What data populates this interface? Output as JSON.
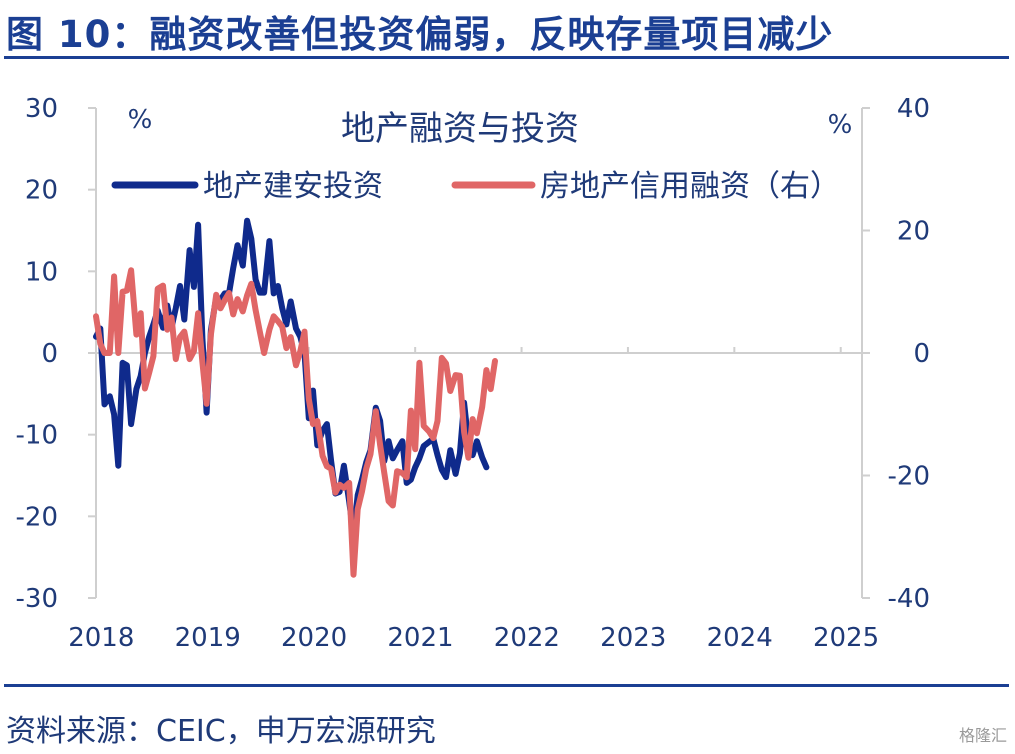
{
  "title": "图 10：融资改善但投资偏弱，反映存量项目减少",
  "source": "资料来源：CEIC，申万宏源研究",
  "watermark": "格隆汇",
  "chart_data": {
    "type": "line",
    "title": "地产融资与投资",
    "left_unit": "%",
    "right_unit": "%",
    "left_ylim": [
      -30,
      30
    ],
    "left_ticks": [
      "30",
      "20",
      "10",
      "0",
      "-10",
      "-20",
      "-30"
    ],
    "right_ylim": [
      -40,
      40
    ],
    "right_ticks": [
      "40",
      "20",
      "0",
      "-20",
      "-40"
    ],
    "x_ticks": [
      "2018",
      "2019",
      "2020",
      "2021",
      "2022",
      "2023",
      "2024",
      "2025"
    ],
    "grid": false,
    "legend_position": "top",
    "colors": {
      "investment": "#0f2a8c",
      "financing": "#e06666",
      "axis": "#cfcfcf",
      "text": "#1f3a78",
      "title": "#1b3f93"
    },
    "series": [
      {
        "name": "地产建安投资",
        "axis": "left",
        "color": "#0f2a8c",
        "points": [
          [
            2018.0,
            2
          ],
          [
            2018.04,
            3
          ],
          [
            2018.08,
            -6.3
          ],
          [
            2018.13,
            -5.3
          ],
          [
            2018.17,
            -7.5
          ],
          [
            2018.21,
            -13.8
          ],
          [
            2018.25,
            -1.2
          ],
          [
            2018.29,
            -1.5
          ],
          [
            2018.33,
            -8.7
          ],
          [
            2018.38,
            -4.4
          ],
          [
            2018.42,
            -2.8
          ],
          [
            2018.46,
            0
          ],
          [
            2018.5,
            2
          ],
          [
            2018.54,
            3.5
          ],
          [
            2018.58,
            5.2
          ],
          [
            2018.63,
            3.1
          ],
          [
            2018.67,
            5.8
          ],
          [
            2018.71,
            3.1
          ],
          [
            2018.75,
            5.5
          ],
          [
            2018.79,
            8.2
          ],
          [
            2018.83,
            4.1
          ],
          [
            2018.88,
            12.6
          ],
          [
            2018.92,
            8.1
          ],
          [
            2018.96,
            15.7
          ],
          [
            2019.0,
            1.8
          ],
          [
            2019.04,
            -7.3
          ],
          [
            2019.08,
            2.8
          ],
          [
            2019.13,
            6.8
          ],
          [
            2019.17,
            6.5
          ],
          [
            2019.21,
            7.3
          ],
          [
            2019.25,
            7.3
          ],
          [
            2019.29,
            10.4
          ],
          [
            2019.33,
            13.2
          ],
          [
            2019.38,
            10.7
          ],
          [
            2019.42,
            16.2
          ],
          [
            2019.46,
            14
          ],
          [
            2019.5,
            9
          ],
          [
            2019.54,
            7.4
          ],
          [
            2019.58,
            7.4
          ],
          [
            2019.63,
            13.7
          ],
          [
            2019.67,
            7.3
          ],
          [
            2019.71,
            8.2
          ],
          [
            2019.75,
            5.5
          ],
          [
            2019.79,
            3.5
          ],
          [
            2019.83,
            6.3
          ],
          [
            2019.88,
            3
          ],
          [
            2019.92,
            2
          ],
          [
            2019.96,
            0
          ],
          [
            2020.0,
            -8
          ],
          [
            2020.04,
            -4.6
          ],
          [
            2020.08,
            -11.3
          ],
          [
            2020.13,
            -9.5
          ],
          [
            2020.17,
            -8.7
          ],
          [
            2020.21,
            -13.2
          ],
          [
            2020.25,
            -17.2
          ],
          [
            2020.29,
            -17
          ],
          [
            2020.33,
            -13.8
          ],
          [
            2020.38,
            -18.2
          ],
          [
            2020.42,
            -22.2
          ],
          [
            2020.46,
            -17.4
          ],
          [
            2020.5,
            -15.5
          ],
          [
            2020.54,
            -13.4
          ],
          [
            2020.58,
            -11.9
          ],
          [
            2020.63,
            -6.7
          ],
          [
            2020.67,
            -8.3
          ],
          [
            2020.71,
            -13.2
          ],
          [
            2020.75,
            -10.8
          ],
          [
            2020.79,
            -12.9
          ],
          [
            2020.83,
            -11.9
          ],
          [
            2020.88,
            -10.8
          ],
          [
            2020.92,
            -15.9
          ],
          [
            2020.96,
            -15.5
          ],
          [
            2021.0,
            -14
          ],
          [
            2021.04,
            -12.9
          ],
          [
            2021.08,
            -11.4
          ],
          [
            2021.13,
            -10.9
          ],
          [
            2021.17,
            -10.5
          ],
          [
            2021.21,
            -12.5
          ],
          [
            2021.25,
            -14.3
          ],
          [
            2021.29,
            -15.2
          ],
          [
            2021.33,
            -11.9
          ],
          [
            2021.38,
            -14.8
          ],
          [
            2021.42,
            -12.3
          ],
          [
            2021.46,
            -6.1
          ],
          [
            2021.5,
            -11
          ],
          [
            2021.54,
            -12.5
          ],
          [
            2021.58,
            -10.8
          ],
          [
            2021.63,
            -12.8
          ],
          [
            2021.67,
            -14
          ]
        ]
      },
      {
        "name": "房地产信用融资（右）",
        "axis": "right",
        "color": "#e06666",
        "points": [
          [
            2018.0,
            6
          ],
          [
            2018.04,
            1.5
          ],
          [
            2018.08,
            0
          ],
          [
            2018.13,
            0
          ],
          [
            2018.17,
            12.5
          ],
          [
            2018.21,
            0
          ],
          [
            2018.25,
            10
          ],
          [
            2018.29,
            10.2
          ],
          [
            2018.33,
            13.5
          ],
          [
            2018.38,
            3
          ],
          [
            2018.42,
            6.5
          ],
          [
            2018.46,
            -5.8
          ],
          [
            2018.5,
            -3.2
          ],
          [
            2018.54,
            -0.5
          ],
          [
            2018.58,
            10.5
          ],
          [
            2018.63,
            11
          ],
          [
            2018.67,
            3.8
          ],
          [
            2018.71,
            5.8
          ],
          [
            2018.75,
            -1
          ],
          [
            2018.79,
            2.6
          ],
          [
            2018.83,
            3.5
          ],
          [
            2018.88,
            -1
          ],
          [
            2018.92,
            0.3
          ],
          [
            2018.96,
            6.5
          ],
          [
            2019.0,
            -1.5
          ],
          [
            2019.04,
            -8.3
          ],
          [
            2019.08,
            3
          ],
          [
            2019.13,
            9.5
          ],
          [
            2019.17,
            7.3
          ],
          [
            2019.21,
            8.6
          ],
          [
            2019.25,
            9.8
          ],
          [
            2019.29,
            6.3
          ],
          [
            2019.33,
            8.8
          ],
          [
            2019.38,
            6.8
          ],
          [
            2019.42,
            9.4
          ],
          [
            2019.46,
            11.3
          ],
          [
            2019.5,
            7
          ],
          [
            2019.54,
            3.5
          ],
          [
            2019.58,
            0
          ],
          [
            2019.63,
            3.8
          ],
          [
            2019.67,
            6
          ],
          [
            2019.71,
            5.2
          ],
          [
            2019.75,
            4.3
          ],
          [
            2019.79,
            0.8
          ],
          [
            2019.83,
            2.6
          ],
          [
            2019.88,
            -2
          ],
          [
            2019.92,
            0.3
          ],
          [
            2019.96,
            3.5
          ],
          [
            2020.0,
            -7.5
          ],
          [
            2020.04,
            -11.6
          ],
          [
            2020.08,
            -11.1
          ],
          [
            2020.13,
            -16.8
          ],
          [
            2020.17,
            -18.5
          ],
          [
            2020.21,
            -18.9
          ],
          [
            2020.25,
            -22.8
          ],
          [
            2020.29,
            -21.5
          ],
          [
            2020.33,
            -22
          ],
          [
            2020.38,
            -21.2
          ],
          [
            2020.42,
            -36.2
          ],
          [
            2020.46,
            -25.5
          ],
          [
            2020.5,
            -22.6
          ],
          [
            2020.54,
            -18.9
          ],
          [
            2020.58,
            -16.5
          ],
          [
            2020.63,
            -9.5
          ],
          [
            2020.67,
            -15
          ],
          [
            2020.71,
            -19.6
          ],
          [
            2020.75,
            -24.2
          ],
          [
            2020.79,
            -24.9
          ],
          [
            2020.83,
            -19.3
          ],
          [
            2020.88,
            -19.6
          ],
          [
            2020.92,
            -20.3
          ],
          [
            2020.96,
            -9.4
          ],
          [
            2021.0,
            -15.7
          ],
          [
            2021.04,
            -1.6
          ],
          [
            2021.08,
            -11.9
          ],
          [
            2021.13,
            -12.8
          ],
          [
            2021.17,
            -13.9
          ],
          [
            2021.21,
            -11.1
          ],
          [
            2021.25,
            -0.8
          ],
          [
            2021.29,
            -1.7
          ],
          [
            2021.33,
            -6.2
          ],
          [
            2021.38,
            -3.6
          ],
          [
            2021.42,
            -3.7
          ],
          [
            2021.46,
            -12.9
          ],
          [
            2021.5,
            -17.1
          ],
          [
            2021.54,
            -10.8
          ],
          [
            2021.58,
            -13.1
          ],
          [
            2021.63,
            -8.8
          ],
          [
            2021.67,
            -2.8
          ],
          [
            2021.71,
            -5.9
          ],
          [
            2021.75,
            -1.3
          ]
        ]
      }
    ]
  }
}
